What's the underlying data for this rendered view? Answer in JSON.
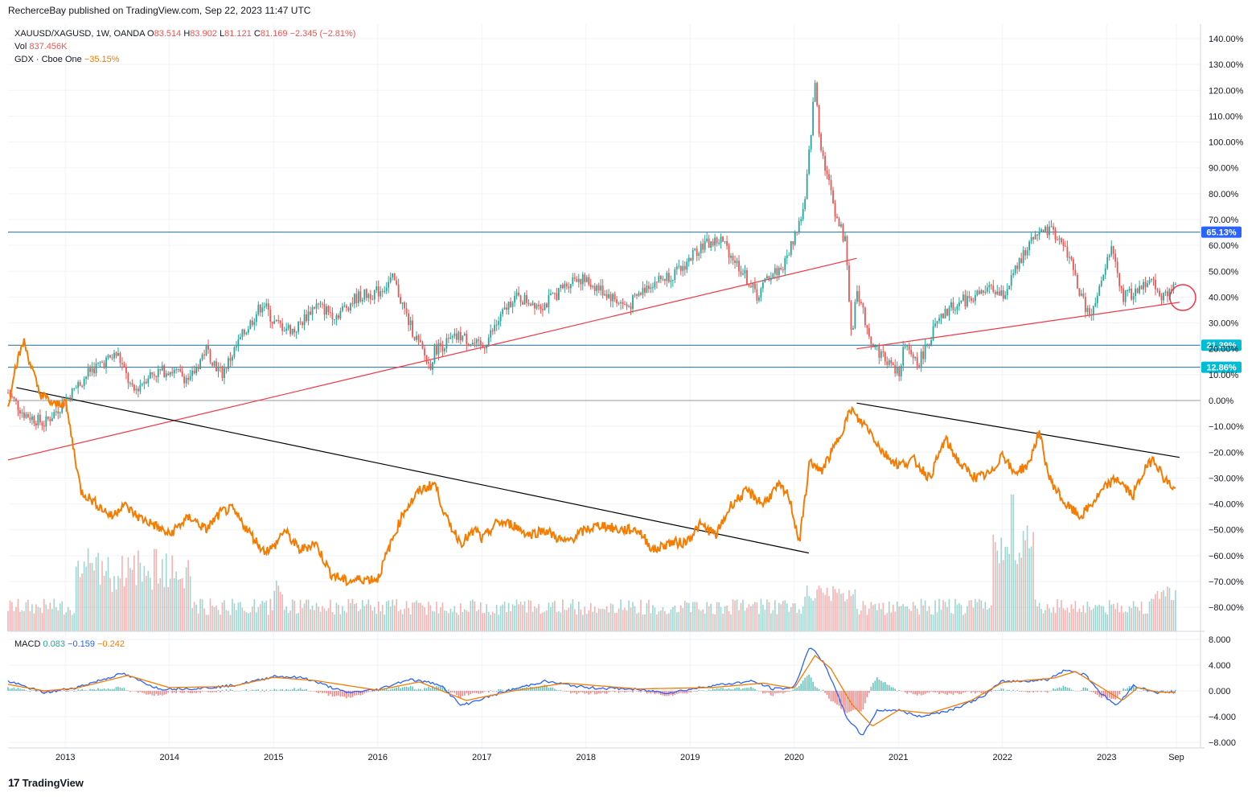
{
  "header": {
    "text": "RecherceBay published on TradingView.com, Sep 22, 2023 11:47 UTC"
  },
  "legend": {
    "symbol": "XAUUSD/XAGUSD, 1W, OANDA",
    "open_label": "O",
    "open": "83.514",
    "high_label": "H",
    "high": "83.902",
    "low_label": "L",
    "low": "81.121",
    "close_label": "C",
    "close": "81.169",
    "change": "−2.345 (−2.81%)",
    "vol_label": "Vol",
    "vol": "837.456K",
    "gdx_label": "GDX · Cboe One",
    "gdx": "−35.15%"
  },
  "macd_legend": {
    "label": "MACD",
    "hist": "0.083",
    "macd": "−0.159",
    "signal": "−0.242"
  },
  "footer": {
    "brand": "TradingView",
    "logo": "17"
  },
  "colors": {
    "up": "#26a69a",
    "down": "#ef5350",
    "gdx": "#f57c00",
    "hline": "#1e6e99",
    "trend_red": "#f23645",
    "trend_black": "#000000",
    "macd": "#2962ff",
    "signal": "#f57c00",
    "badge_blue": "#2962ff",
    "badge_cyan": "#00bcd4"
  },
  "chart_data": {
    "type": "line",
    "title": "",
    "main": {
      "y_axis_ticks": [
        "140.00%",
        "130.00%",
        "120.00%",
        "110.00%",
        "100.00%",
        "90.00%",
        "80.00%",
        "70.00%",
        "60.00%",
        "50.00%",
        "40.00%",
        "30.00%",
        "20.00%",
        "10.00%",
        "0.00%",
        "−10.00%",
        "−20.00%",
        "−30.00%",
        "−40.00%",
        "−50.00%",
        "−60.00%",
        "−70.00%",
        "−80.00%"
      ],
      "ylim": [
        -86,
        143
      ],
      "x_ticks": [
        "2013",
        "2014",
        "2015",
        "2016",
        "2017",
        "2018",
        "2019",
        "2020",
        "2021",
        "2022",
        "2023",
        "Sep"
      ],
      "x_tick_dates": [
        2013.0,
        2014.0,
        2015.0,
        2016.0,
        2017.0,
        2018.0,
        2019.0,
        2020.0,
        2021.0,
        2022.0,
        2023.0,
        2023.67
      ],
      "horizontal_levels": [
        {
          "value": 65.13,
          "label": "65.13%",
          "badge": "blue"
        },
        {
          "value": 21.39,
          "label": "21.39%",
          "badge": "cyan"
        },
        {
          "value": 12.86,
          "label": "12.86%",
          "badge": "cyan"
        },
        {
          "value": 0.0,
          "label": "",
          "badge": "none"
        }
      ],
      "series": [
        {
          "name": "XAUUSD/XAGUSD",
          "x": [
            2012.45,
            2012.6,
            2012.8,
            2013.0,
            2013.25,
            2013.5,
            2013.65,
            2013.8,
            2014.0,
            2014.2,
            2014.35,
            2014.5,
            2014.7,
            2014.9,
            2015.0,
            2015.2,
            2015.4,
            2015.6,
            2015.8,
            2016.0,
            2016.15,
            2016.3,
            2016.5,
            2016.55,
            2016.8,
            2017.0,
            2017.3,
            2017.6,
            2017.9,
            2018.1,
            2018.4,
            2018.6,
            2018.9,
            2019.1,
            2019.3,
            2019.5,
            2019.65,
            2019.75,
            2019.9,
            2020.1,
            2020.2,
            2020.25,
            2020.3,
            2020.4,
            2020.5,
            2020.55,
            2020.6,
            2020.65,
            2020.75,
            2020.9,
            2021.0,
            2021.05,
            2021.2,
            2021.35,
            2021.5,
            2021.7,
            2021.9,
            2022.0,
            2022.2,
            2022.3,
            2022.5,
            2022.65,
            2022.75,
            2022.85,
            2022.95,
            2023.05,
            2023.15,
            2023.3,
            2023.4,
            2023.55,
            2023.67
          ],
          "values": [
            3,
            -5,
            -9,
            0,
            12,
            18,
            3,
            10,
            12,
            8,
            20,
            10,
            25,
            38,
            30,
            27,
            37,
            33,
            40,
            42,
            47,
            30,
            13,
            20,
            25,
            20,
            40,
            37,
            48,
            44,
            36,
            45,
            50,
            60,
            62,
            50,
            40,
            48,
            52,
            75,
            123,
            100,
            90,
            72,
            60,
            22,
            45,
            35,
            22,
            15,
            10,
            20,
            15,
            28,
            36,
            40,
            43,
            40,
            56,
            65,
            65,
            55,
            40,
            32,
            45,
            60,
            40,
            42,
            48,
            40,
            45
          ]
        },
        {
          "name": "GDX · Cboe One",
          "x": [
            2012.45,
            2012.5,
            2012.6,
            2012.75,
            2012.9,
            2013.0,
            2013.15,
            2013.3,
            2013.45,
            2013.55,
            2013.7,
            2013.85,
            2014.0,
            2014.1,
            2014.2,
            2014.35,
            2014.5,
            2014.6,
            2014.75,
            2014.9,
            2015.0,
            2015.1,
            2015.25,
            2015.4,
            2015.55,
            2015.7,
            2015.85,
            2016.0,
            2016.1,
            2016.25,
            2016.4,
            2016.55,
            2016.65,
            2016.8,
            2016.95,
            2017.0,
            2017.15,
            2017.3,
            2017.45,
            2017.6,
            2017.8,
            2018.0,
            2018.15,
            2018.3,
            2018.5,
            2018.65,
            2018.8,
            2018.95,
            2019.1,
            2019.25,
            2019.4,
            2019.55,
            2019.7,
            2019.85,
            2019.95,
            2020.05,
            2020.15,
            2020.25,
            2020.4,
            2020.55,
            2020.6,
            2020.7,
            2020.85,
            2021.0,
            2021.15,
            2021.3,
            2021.45,
            2021.6,
            2021.75,
            2021.9,
            2022.0,
            2022.1,
            2022.25,
            2022.35,
            2022.45,
            2022.6,
            2022.75,
            2022.9,
            2023.0,
            2023.1,
            2023.25,
            2023.35,
            2023.45,
            2023.55,
            2023.67
          ],
          "values": [
            -3,
            10,
            23,
            3,
            -2,
            0,
            -35,
            -40,
            -45,
            -40,
            -45,
            -48,
            -52,
            -48,
            -45,
            -50,
            -43,
            -42,
            -50,
            -58,
            -57,
            -50,
            -58,
            -55,
            -67,
            -70,
            -69,
            -69,
            -58,
            -43,
            -35,
            -32,
            -45,
            -55,
            -50,
            -54,
            -47,
            -48,
            -52,
            -50,
            -55,
            -50,
            -48,
            -50,
            -50,
            -58,
            -55,
            -55,
            -48,
            -52,
            -40,
            -35,
            -40,
            -33,
            -37,
            -55,
            -23,
            -28,
            -17,
            -3,
            -7,
            -10,
            -20,
            -25,
            -23,
            -30,
            -15,
            -25,
            -30,
            -28,
            -20,
            -28,
            -25,
            -12,
            -30,
            -40,
            -45,
            -38,
            -33,
            -30,
            -37,
            -28,
            -22,
            -30,
            -35
          ]
        }
      ],
      "volume": {
        "peak_dates": [
          2013.25,
          2022.1
        ],
        "peak_relative": [
          0.5,
          1.0
        ]
      }
    },
    "macd": {
      "y_axis_ticks": [
        "8.000",
        "4.000",
        "0.000",
        "−4.000",
        "−8.000"
      ],
      "ylim": [
        -9,
        9
      ],
      "series": [
        {
          "name": "MACD",
          "x": [
            2012.45,
            2012.8,
            2013.1,
            2013.55,
            2013.9,
            2014.3,
            2014.6,
            2014.9,
            2015.0,
            2015.3,
            2015.7,
            2016.0,
            2016.3,
            2016.6,
            2016.8,
            2017.2,
            2017.6,
            2018.0,
            2018.4,
            2018.8,
            2019.2,
            2019.6,
            2019.8,
            2020.0,
            2020.15,
            2020.3,
            2020.5,
            2020.65,
            2020.8,
            2021.0,
            2021.2,
            2021.5,
            2021.8,
            2022.0,
            2022.2,
            2022.45,
            2022.6,
            2022.8,
            2022.95,
            2023.1,
            2023.25,
            2023.5,
            2023.67
          ],
          "values": [
            1.5,
            -0.3,
            0.5,
            2.7,
            0.3,
            0.4,
            0.8,
            1.8,
            2.3,
            2.0,
            -0.3,
            0.2,
            1.8,
            1.0,
            -2.3,
            -0.2,
            1.5,
            0.5,
            0.3,
            -0.3,
            0.8,
            1.5,
            0.3,
            0.5,
            7.0,
            4.0,
            -4.0,
            -7.0,
            -3.0,
            -3.0,
            -4.0,
            -3.0,
            -1.0,
            1.5,
            1.5,
            1.8,
            3.3,
            2.5,
            -0.5,
            -2.3,
            0.8,
            -0.3,
            -0.159
          ]
        },
        {
          "name": "Signal",
          "x": [
            2012.45,
            2012.8,
            2013.1,
            2013.6,
            2014.0,
            2014.6,
            2015.0,
            2015.4,
            2016.0,
            2016.4,
            2016.85,
            2017.3,
            2017.8,
            2018.5,
            2019.2,
            2019.7,
            2020.0,
            2020.2,
            2020.35,
            2020.55,
            2020.75,
            2021.0,
            2021.3,
            2021.7,
            2022.0,
            2022.5,
            2022.7,
            2022.95,
            2023.15,
            2023.3,
            2023.5,
            2023.67
          ],
          "values": [
            1.0,
            0.0,
            0.4,
            2.4,
            0.5,
            0.7,
            2.1,
            1.6,
            0.1,
            1.4,
            -1.5,
            0.0,
            1.2,
            0.3,
            0.5,
            1.2,
            0.4,
            5.5,
            3.5,
            -2.0,
            -5.5,
            -3.0,
            -3.5,
            -1.5,
            1.3,
            2.0,
            3.0,
            0.5,
            -1.5,
            0.5,
            -0.2,
            -0.242
          ]
        }
      ]
    },
    "grid": true,
    "legend": "top-left"
  }
}
